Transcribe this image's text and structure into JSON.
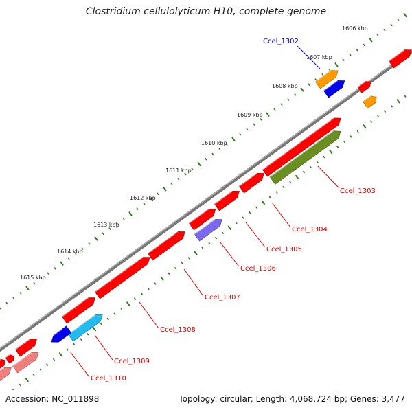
{
  "title": "Clostridium cellulolyticum H10, complete genome",
  "accession": "Accession: NC_011898",
  "stats": "Topology: circular; Length: 4,068,724 bp; Genes: 3,477",
  "colors": {
    "backbone": "#777777",
    "ruler_ticks": "#2e7d1e",
    "gene_red": "#ff0000",
    "gene_pink": "#f08080",
    "gene_orange": "#ff9900",
    "gene_blue": "#0000ee",
    "gene_cyan": "#22bbee",
    "gene_olive": "#6b8e23",
    "gene_purple": "#7b68ee",
    "label_red": "#dd0000",
    "label_blue": "#0000cc"
  },
  "ruler_labels": [
    "1606 kbp",
    "1607 kbp",
    "1608 kbp",
    "1609 kbp",
    "1610 kbp",
    "1611 kbp",
    "1612 kbp",
    "1613 kbp",
    "1614 kbp",
    "1615 kbp"
  ],
  "gene_labels": [
    "Ccel_1302",
    "Ccel_1303",
    "Ccel_1304",
    "Ccel_1305",
    "Ccel_1306",
    "Ccel_1307",
    "Ccel_1308",
    "Ccel_1309",
    "Ccel_1310"
  ]
}
